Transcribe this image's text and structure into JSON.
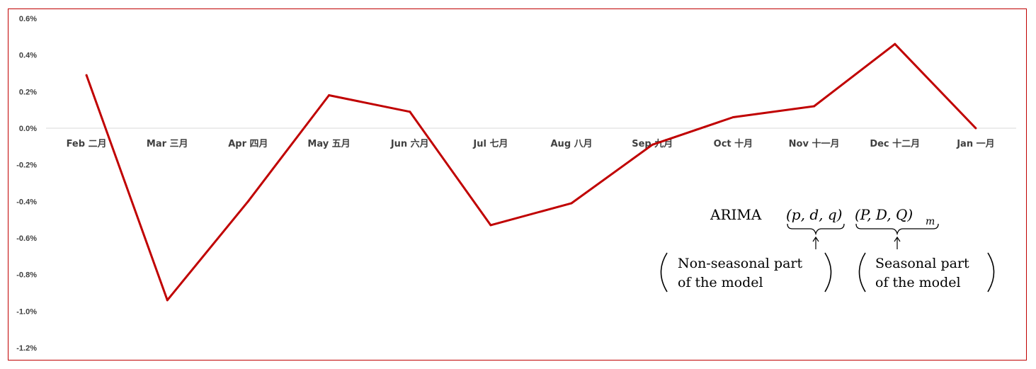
{
  "chart_data": {
    "type": "line",
    "categories": [
      "Feb 二月",
      "Mar 三月",
      "Apr 四月",
      "May 五月",
      "Jun 六月",
      "Jul 七月",
      "Aug 八月",
      "Sep 九月",
      "Oct 十月",
      "Nov 十一月",
      "Dec 十二月",
      "Jan 一月"
    ],
    "series": [
      {
        "values": [
          0.29,
          -0.94,
          -0.4,
          0.18,
          0.09,
          -0.53,
          -0.41,
          -0.09,
          0.06,
          0.12,
          0.46,
          0.0
        ]
      }
    ],
    "ylim": [
      -1.2,
      0.6
    ],
    "yticks": [
      "0.6%",
      "0.4%",
      "0.2%",
      "0.0%",
      "-0.2%",
      "-0.4%",
      "-0.6%",
      "-0.8%",
      "-1.0%",
      "-1.2%"
    ],
    "ytick_values": [
      0.6,
      0.4,
      0.2,
      0.0,
      -0.2,
      -0.4,
      -0.6,
      -0.8,
      -1.0,
      -1.2
    ],
    "grid": false,
    "line_color": "#C00000",
    "border_color": "#C00000",
    "annotation": {
      "arima_label": "ARIMA",
      "nonseasonal_terms": "(p, d, q)",
      "seasonal_terms": "(P, D, Q)",
      "seasonal_subscript": "m",
      "nonseasonal_note_line1": "Non-seasonal part",
      "nonseasonal_note_line2": "of the model",
      "seasonal_note_line1": "Seasonal part",
      "seasonal_note_line2": "of the model"
    }
  }
}
